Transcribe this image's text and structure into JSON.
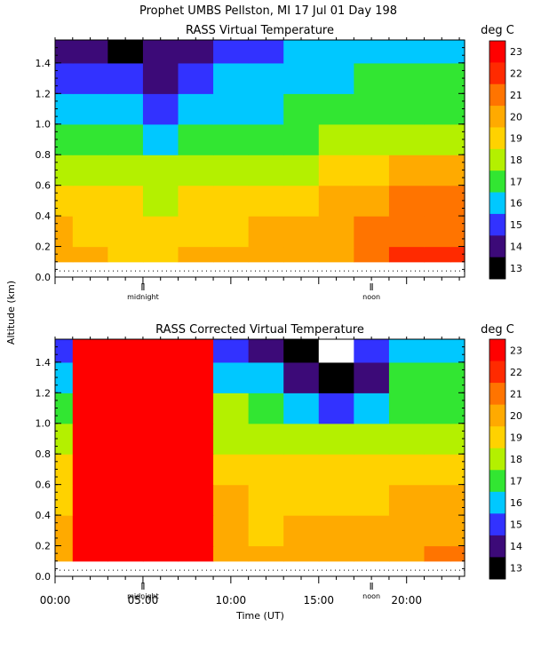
{
  "header": {
    "title": "Prophet  UMBS Pellston, MI  17 Jul 01 Day 198"
  },
  "shared_axes": {
    "ylabel": "Altitude (km)",
    "xlabel": "Time (UT)",
    "x_tick_labels": [
      "00:00",
      "05:00",
      "10:00",
      "15:00",
      "20:00"
    ],
    "y_tick_labels": [
      "0.0",
      "0.2",
      "0.4",
      "0.6",
      "0.8",
      "1.0",
      "1.2",
      "1.4"
    ],
    "markers": [
      {
        "label": "midnight",
        "x": 5.0
      },
      {
        "label": "noon",
        "x": 18.0
      }
    ],
    "colorbar_unit": "deg C",
    "colorbar_labels": [
      "23",
      "22",
      "21",
      "20",
      "19",
      "18",
      "17",
      "16",
      "15",
      "14",
      "13"
    ],
    "colorbar_colors": [
      "#ff0000",
      "#ff2a00",
      "#ff7400",
      "#ffaa00",
      "#ffd200",
      "#b4f000",
      "#32e632",
      "#00c8ff",
      "#3232ff",
      "#3c0a78",
      "#000000"
    ]
  },
  "chart_data": [
    {
      "type": "heatmap",
      "title": "RASS Virtual Temperature",
      "xlabel": "",
      "ylabel": "Altitude (km)",
      "xlim": [
        0,
        23.3
      ],
      "ylim": [
        0,
        1.55
      ],
      "zlabel": "deg C",
      "zlim": [
        13,
        23.5
      ],
      "x": [
        0,
        2,
        4,
        6,
        8,
        10,
        12,
        14,
        16,
        18,
        20,
        22,
        23
      ],
      "y": [
        0.1,
        0.3,
        0.5,
        0.7,
        0.9,
        1.1,
        1.3,
        1.5
      ],
      "values": [
        [
          20.5,
          20.0,
          19.8,
          19.5,
          20.0,
          20.0,
          20.0,
          20.5,
          20.8,
          21.5,
          22.0,
          22.0,
          22.0
        ],
        [
          20.0,
          19.5,
          19.5,
          19.2,
          19.5,
          19.8,
          20.0,
          20.0,
          20.5,
          21.0,
          21.5,
          21.5,
          21.5
        ],
        [
          19.5,
          19.0,
          19.0,
          18.7,
          19.0,
          19.3,
          19.5,
          19.5,
          20.0,
          20.5,
          21.0,
          21.0,
          21.0
        ],
        [
          18.5,
          18.5,
          18.5,
          18.2,
          18.5,
          18.5,
          18.5,
          18.5,
          19.0,
          19.5,
          20.0,
          20.0,
          20.0
        ],
        [
          17.5,
          17.5,
          17.3,
          16.8,
          17.0,
          17.5,
          17.5,
          17.5,
          18.0,
          18.5,
          18.5,
          18.5,
          18.5
        ],
        [
          16.5,
          16.3,
          16.0,
          15.5,
          16.0,
          16.5,
          16.5,
          17.0,
          17.0,
          17.5,
          17.5,
          17.5,
          17.5
        ],
        [
          15.5,
          15.0,
          15.0,
          14.5,
          15.5,
          16.0,
          16.0,
          16.5,
          16.5,
          17.0,
          17.0,
          17.0,
          17.0
        ],
        [
          14.5,
          14.0,
          13.5,
          14.0,
          14.5,
          15.0,
          15.5,
          16.0,
          16.0,
          16.5,
          16.5,
          16.5,
          16.5
        ]
      ]
    },
    {
      "type": "heatmap",
      "title": "RASS Corrected Virtual Temperature",
      "xlabel": "Time (UT)",
      "ylabel": "Altitude (km)",
      "xlim": [
        0,
        23.3
      ],
      "ylim": [
        0,
        1.55
      ],
      "zlabel": "deg C",
      "zlim": [
        13,
        23.5
      ],
      "x": [
        0,
        2,
        4,
        6,
        8,
        10,
        12,
        14,
        16,
        18,
        20,
        22,
        23
      ],
      "y": [
        0.1,
        0.3,
        0.5,
        0.7,
        0.9,
        1.1,
        1.3,
        1.5
      ],
      "values": [
        [
          20.5,
          23.5,
          23.5,
          23.5,
          23.5,
          20.0,
          20.0,
          20.0,
          20.0,
          20.0,
          20.5,
          21.0,
          21.0
        ],
        [
          20.0,
          23.5,
          23.5,
          23.5,
          23.5,
          20.0,
          19.5,
          20.0,
          20.0,
          20.0,
          20.5,
          20.5,
          20.5
        ],
        [
          19.5,
          23.5,
          23.5,
          23.5,
          23.5,
          20.0,
          19.5,
          19.5,
          19.5,
          19.5,
          20.0,
          20.0,
          20.0
        ],
        [
          19.0,
          23.5,
          23.5,
          23.5,
          23.5,
          19.5,
          19.0,
          19.0,
          19.0,
          19.0,
          19.5,
          19.5,
          19.5
        ],
        [
          18.0,
          23.5,
          23.5,
          23.5,
          23.5,
          18.5,
          18.5,
          18.5,
          18.0,
          18.0,
          18.5,
          18.5,
          18.5
        ],
        [
          17.0,
          23.5,
          23.5,
          23.5,
          23.5,
          18.0,
          17.5,
          16.0,
          15.5,
          16.5,
          17.5,
          17.5,
          17.5
        ],
        [
          16.0,
          23.5,
          23.5,
          23.5,
          23.5,
          16.5,
          16.0,
          14.5,
          13.0,
          14.0,
          17.0,
          17.0,
          17.0
        ],
        [
          15.0,
          23.5,
          23.5,
          23.5,
          23.5,
          15.5,
          14.0,
          13.5,
          12.0,
          15.0,
          16.5,
          16.5,
          16.5
        ]
      ]
    }
  ]
}
